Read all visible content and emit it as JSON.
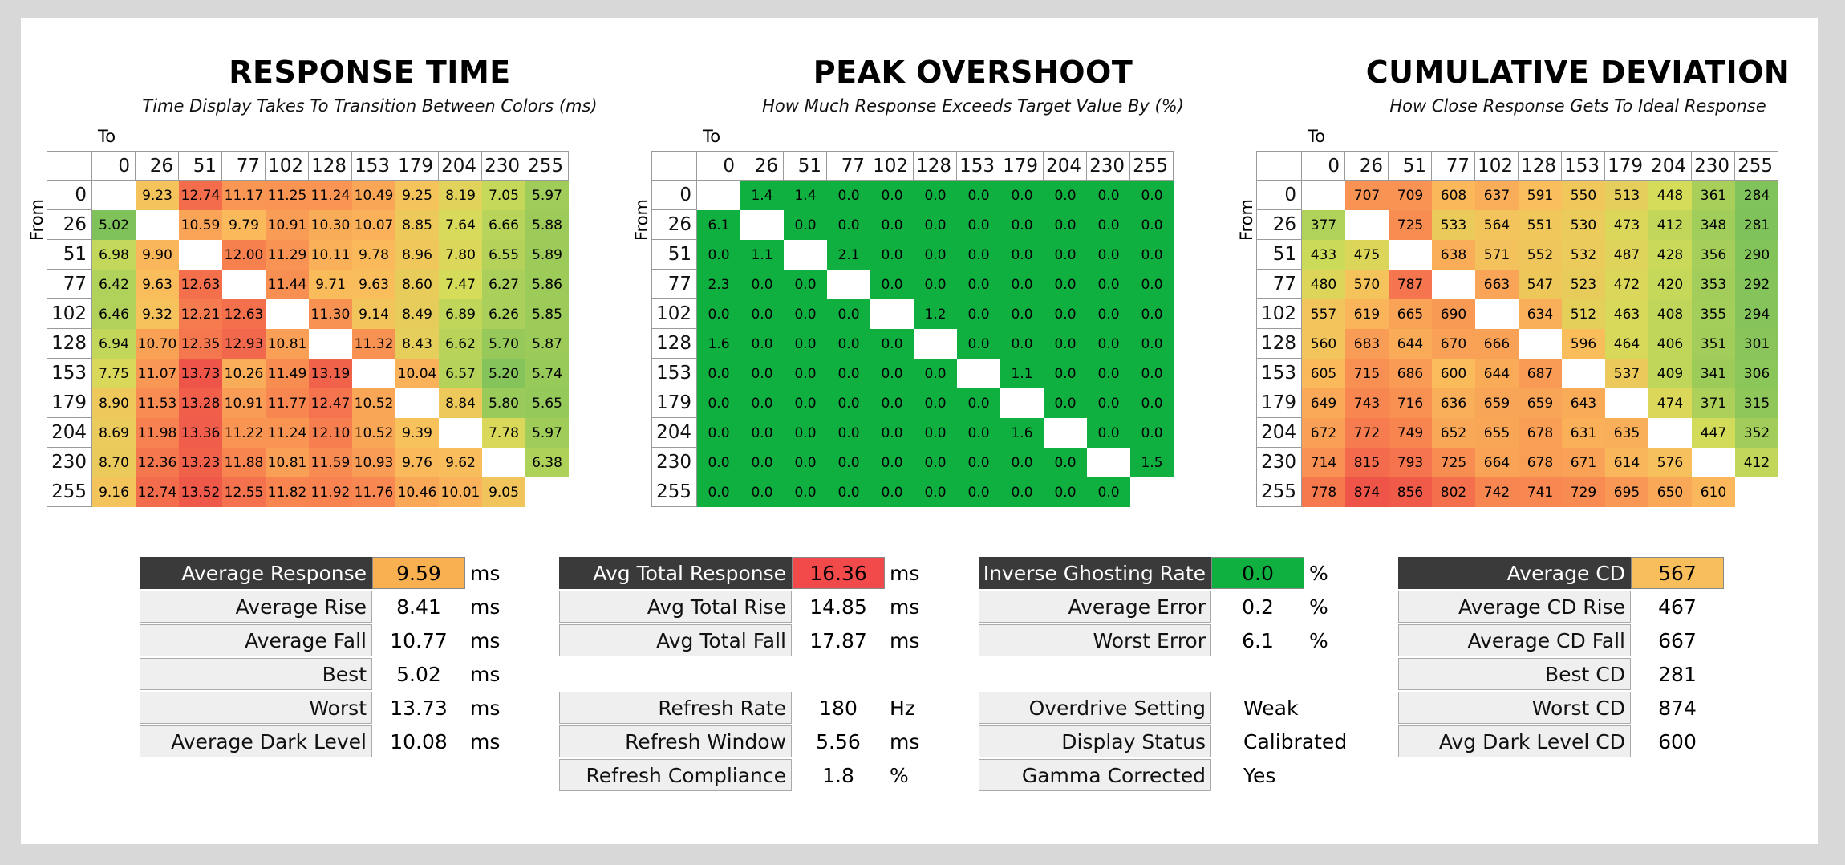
{
  "colors": {
    "overshoot_green": "#10b040",
    "cd_highlight": "#f9be5c",
    "response_highlight": "#f8b050",
    "total_response_highlight": "#f24a4a",
    "ghosting_highlight": "#10b040",
    "label_dark": "#3a3a3a"
  },
  "headers": [
    "0",
    "26",
    "51",
    "77",
    "102",
    "128",
    "153",
    "179",
    "204",
    "230",
    "255"
  ],
  "response_time": {
    "title": "RESPONSE TIME",
    "subtitle": "Time Display Takes To Transition Between Colors (ms)",
    "to_label": "To",
    "from_label": "From",
    "rows": [
      [
        "",
        "9.23",
        "12.74",
        "11.17",
        "11.25",
        "11.24",
        "10.49",
        "9.25",
        "8.19",
        "7.05",
        "5.97"
      ],
      [
        "5.02",
        "",
        "10.59",
        "9.79",
        "10.91",
        "10.30",
        "10.07",
        "8.85",
        "7.64",
        "6.66",
        "5.88"
      ],
      [
        "6.98",
        "9.90",
        "",
        "12.00",
        "11.29",
        "10.11",
        "9.78",
        "8.96",
        "7.80",
        "6.55",
        "5.89"
      ],
      [
        "6.42",
        "9.63",
        "12.63",
        "",
        "11.44",
        "9.71",
        "9.63",
        "8.60",
        "7.47",
        "6.27",
        "5.86"
      ],
      [
        "6.46",
        "9.32",
        "12.21",
        "12.63",
        "",
        "11.30",
        "9.14",
        "8.49",
        "6.89",
        "6.26",
        "5.85"
      ],
      [
        "6.94",
        "10.70",
        "12.35",
        "12.93",
        "10.81",
        "",
        "11.32",
        "8.43",
        "6.62",
        "5.70",
        "5.87"
      ],
      [
        "7.75",
        "11.07",
        "13.73",
        "10.26",
        "11.49",
        "13.19",
        "",
        "10.04",
        "6.57",
        "5.20",
        "5.74"
      ],
      [
        "8.90",
        "11.53",
        "13.28",
        "10.91",
        "11.77",
        "12.47",
        "10.52",
        "",
        "8.84",
        "5.80",
        "5.65"
      ],
      [
        "8.69",
        "11.98",
        "13.36",
        "11.22",
        "11.24",
        "12.10",
        "10.52",
        "9.39",
        "",
        "7.78",
        "5.97"
      ],
      [
        "8.70",
        "12.36",
        "13.23",
        "11.88",
        "10.81",
        "11.59",
        "10.93",
        "9.76",
        "9.62",
        "",
        "6.38"
      ],
      [
        "9.16",
        "12.74",
        "13.52",
        "12.55",
        "11.82",
        "11.92",
        "11.76",
        "10.46",
        "10.01",
        "9.05",
        ""
      ]
    ]
  },
  "peak_overshoot": {
    "title": "PEAK OVERSHOOT",
    "subtitle": "How Much Response Exceeds Target Value By (%)",
    "to_label": "To",
    "from_label": "From",
    "rows": [
      [
        "",
        "1.4",
        "1.4",
        "0.0",
        "0.0",
        "0.0",
        "0.0",
        "0.0",
        "0.0",
        "0.0",
        "0.0"
      ],
      [
        "6.1",
        "",
        "0.0",
        "0.0",
        "0.0",
        "0.0",
        "0.0",
        "0.0",
        "0.0",
        "0.0",
        "0.0"
      ],
      [
        "0.0",
        "1.1",
        "",
        "2.1",
        "0.0",
        "0.0",
        "0.0",
        "0.0",
        "0.0",
        "0.0",
        "0.0"
      ],
      [
        "2.3",
        "0.0",
        "0.0",
        "",
        "0.0",
        "0.0",
        "0.0",
        "0.0",
        "0.0",
        "0.0",
        "0.0"
      ],
      [
        "0.0",
        "0.0",
        "0.0",
        "0.0",
        "",
        "1.2",
        "0.0",
        "0.0",
        "0.0",
        "0.0",
        "0.0"
      ],
      [
        "1.6",
        "0.0",
        "0.0",
        "0.0",
        "0.0",
        "",
        "0.0",
        "0.0",
        "0.0",
        "0.0",
        "0.0"
      ],
      [
        "0.0",
        "0.0",
        "0.0",
        "0.0",
        "0.0",
        "0.0",
        "",
        "1.1",
        "0.0",
        "0.0",
        "0.0"
      ],
      [
        "0.0",
        "0.0",
        "0.0",
        "0.0",
        "0.0",
        "0.0",
        "0.0",
        "",
        "0.0",
        "0.0",
        "0.0"
      ],
      [
        "0.0",
        "0.0",
        "0.0",
        "0.0",
        "0.0",
        "0.0",
        "0.0",
        "1.6",
        "",
        "0.0",
        "0.0"
      ],
      [
        "0.0",
        "0.0",
        "0.0",
        "0.0",
        "0.0",
        "0.0",
        "0.0",
        "0.0",
        "0.0",
        "",
        "1.5"
      ],
      [
        "0.0",
        "0.0",
        "0.0",
        "0.0",
        "0.0",
        "0.0",
        "0.0",
        "0.0",
        "0.0",
        "0.0",
        ""
      ]
    ]
  },
  "cumulative_deviation": {
    "title": "CUMULATIVE DEVIATION",
    "subtitle": "How Close Response Gets To Ideal Response",
    "to_label": "To",
    "from_label": "From",
    "rows": [
      [
        "",
        "707",
        "709",
        "608",
        "637",
        "591",
        "550",
        "513",
        "448",
        "361",
        "284"
      ],
      [
        "377",
        "",
        "725",
        "533",
        "564",
        "551",
        "530",
        "473",
        "412",
        "348",
        "281"
      ],
      [
        "433",
        "475",
        "",
        "638",
        "571",
        "552",
        "532",
        "487",
        "428",
        "356",
        "290"
      ],
      [
        "480",
        "570",
        "787",
        "",
        "663",
        "547",
        "523",
        "472",
        "420",
        "353",
        "292"
      ],
      [
        "557",
        "619",
        "665",
        "690",
        "",
        "634",
        "512",
        "463",
        "408",
        "355",
        "294"
      ],
      [
        "560",
        "683",
        "644",
        "670",
        "666",
        "",
        "596",
        "464",
        "406",
        "351",
        "301"
      ],
      [
        "605",
        "715",
        "686",
        "600",
        "644",
        "687",
        "",
        "537",
        "409",
        "341",
        "306"
      ],
      [
        "649",
        "743",
        "716",
        "636",
        "659",
        "659",
        "643",
        "",
        "474",
        "371",
        "315"
      ],
      [
        "672",
        "772",
        "749",
        "652",
        "655",
        "678",
        "631",
        "635",
        "",
        "447",
        "352"
      ],
      [
        "714",
        "815",
        "793",
        "725",
        "664",
        "678",
        "671",
        "614",
        "576",
        "",
        "412"
      ],
      [
        "778",
        "874",
        "856",
        "802",
        "742",
        "741",
        "729",
        "695",
        "650",
        "610",
        ""
      ]
    ]
  },
  "stats_response": [
    {
      "label": "Average Response",
      "value": "9.59",
      "unit": "ms"
    },
    {
      "label": "Average Rise",
      "value": "8.41",
      "unit": "ms"
    },
    {
      "label": "Average Fall",
      "value": "10.77",
      "unit": "ms"
    },
    {
      "label": "Best",
      "value": "5.02",
      "unit": "ms"
    },
    {
      "label": "Worst",
      "value": "13.73",
      "unit": "ms"
    },
    {
      "label": "Average Dark Level",
      "value": "10.08",
      "unit": "ms"
    }
  ],
  "stats_total": [
    {
      "label": "Avg Total Response",
      "value": "16.36",
      "unit": "ms"
    },
    {
      "label": "Avg Total Rise",
      "value": "14.85",
      "unit": "ms"
    },
    {
      "label": "Avg Total Fall",
      "value": "17.87",
      "unit": "ms"
    }
  ],
  "stats_refresh": [
    {
      "label": "Refresh Rate",
      "value": "180",
      "unit": "Hz"
    },
    {
      "label": "Refresh Window",
      "value": "5.56",
      "unit": "ms"
    },
    {
      "label": "Refresh Compliance",
      "value": "1.8",
      "unit": "%"
    }
  ],
  "stats_overshoot": [
    {
      "label": "Inverse Ghosting Rate",
      "value": "0.0",
      "unit": "%"
    },
    {
      "label": "Average Error",
      "value": "0.2",
      "unit": "%"
    },
    {
      "label": "Worst Error",
      "value": "6.1",
      "unit": "%"
    }
  ],
  "stats_settings": [
    {
      "label": "Overdrive Setting",
      "value": "Weak",
      "unit": ""
    },
    {
      "label": "Display Status",
      "value": "Calibrated",
      "unit": ""
    },
    {
      "label": "Gamma Corrected",
      "value": "Yes",
      "unit": ""
    }
  ],
  "stats_cd": [
    {
      "label": "Average CD",
      "value": "567",
      "unit": ""
    },
    {
      "label": "Average CD Rise",
      "value": "467",
      "unit": ""
    },
    {
      "label": "Average CD Fall",
      "value": "667",
      "unit": ""
    },
    {
      "label": "Best CD",
      "value": "281",
      "unit": ""
    },
    {
      "label": "Worst CD",
      "value": "874",
      "unit": ""
    },
    {
      "label": "Avg Dark Level CD",
      "value": "600",
      "unit": ""
    }
  ]
}
